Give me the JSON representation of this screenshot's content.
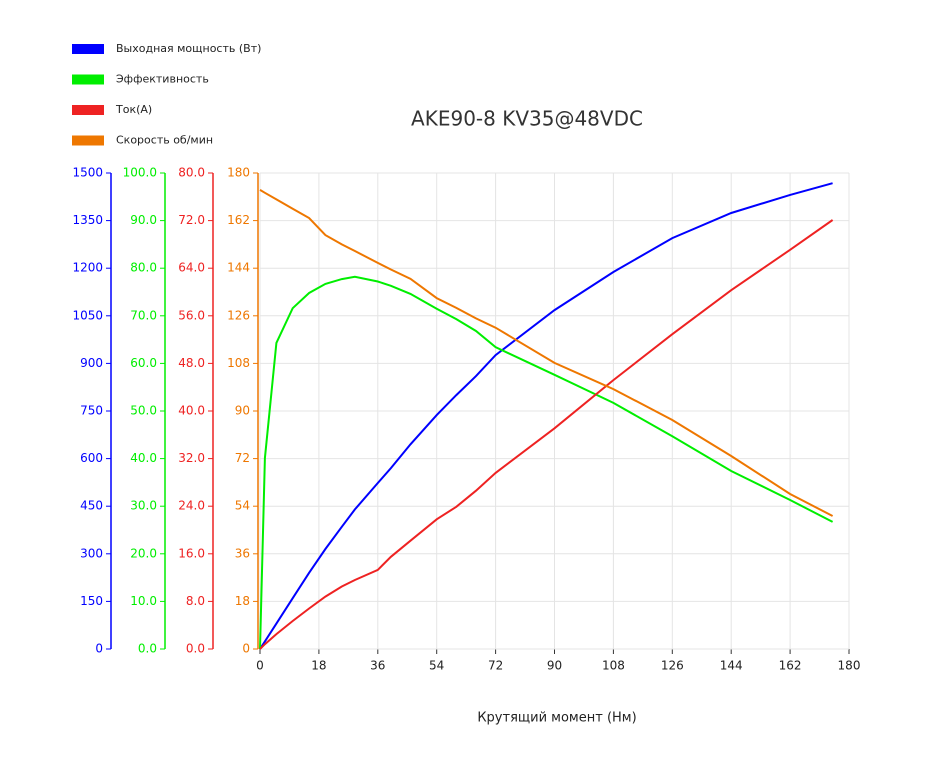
{
  "chart_data": {
    "type": "line",
    "title": "AKE90-8 KV35@48VDC",
    "x_label": "Крутящий момент (Нм)",
    "x": [
      0,
      1.5,
      5,
      10,
      15,
      20,
      25,
      29,
      36,
      40,
      46,
      54,
      60,
      66,
      72,
      90,
      108,
      126,
      144,
      162,
      175
    ],
    "xlim": [
      0,
      180
    ],
    "xticks": [
      0,
      18,
      36,
      54,
      72,
      90,
      108,
      126,
      144,
      162,
      180
    ],
    "grid": true,
    "axes": [
      {
        "color": "#0000ff",
        "ylim": [
          0,
          1500
        ],
        "yticks": [
          0,
          150,
          300,
          450,
          600,
          750,
          900,
          1050,
          1200,
          1350,
          1500
        ]
      },
      {
        "color": "#00ee00",
        "ylim": [
          0,
          100
        ],
        "yticks": [
          {
            "value": 0,
            "label": "0.0"
          },
          {
            "value": 10,
            "label": "10.0"
          },
          {
            "value": 20,
            "label": "20.0"
          },
          {
            "value": 30,
            "label": "30.0"
          },
          {
            "value": 40,
            "label": "40.0"
          },
          {
            "value": 50,
            "label": "50.0"
          },
          {
            "value": 60,
            "label": "60.0"
          },
          {
            "value": 70,
            "label": "70.0"
          },
          {
            "value": 80,
            "label": "80.0"
          },
          {
            "value": 90,
            "label": "90.0"
          },
          {
            "value": 100,
            "label": "100.0"
          }
        ]
      },
      {
        "color": "#ee2222",
        "ylim": [
          0,
          80
        ],
        "yticks": [
          {
            "value": 0,
            "label": "0.0"
          },
          {
            "value": 8,
            "label": "8.0"
          },
          {
            "value": 16,
            "label": "16.0"
          },
          {
            "value": 24,
            "label": "24.0"
          },
          {
            "value": 32,
            "label": "32.0"
          },
          {
            "value": 40,
            "label": "40.0"
          },
          {
            "value": 48,
            "label": "48.0"
          },
          {
            "value": 56,
            "label": "56.0"
          },
          {
            "value": 64,
            "label": "64.0"
          },
          {
            "value": 72,
            "label": "72.0"
          },
          {
            "value": 80,
            "label": "80.0"
          }
        ]
      },
      {
        "color": "#ee7700",
        "ylim": [
          0,
          180
        ],
        "yticks": [
          0,
          18,
          36,
          54,
          72,
          90,
          108,
          126,
          144,
          162,
          180
        ]
      }
    ],
    "series": [
      {
        "name": "Выходная мощность (Вт)",
        "color": "#0000ff",
        "axis": 0,
        "values": [
          0,
          24,
          80,
          160,
          240,
          315,
          385,
          440,
          523,
          570,
          645,
          737,
          800,
          860,
          926,
          1068,
          1188,
          1295,
          1374,
          1431,
          1468
        ]
      },
      {
        "name": "Эффективность",
        "color": "#00ee00",
        "axis": 1,
        "values": [
          0,
          40.1,
          64.3,
          71.6,
          74.8,
          76.7,
          77.7,
          78.2,
          77.2,
          76.3,
          74.6,
          71.5,
          69.3,
          66.8,
          63.4,
          57.6,
          51.7,
          44.7,
          37.4,
          31.3,
          26.7
        ]
      },
      {
        "name": "Ток(A)",
        "color": "#ee2222",
        "axis": 2,
        "values": [
          0,
          0.8,
          2.5,
          4.7,
          6.8,
          8.8,
          10.5,
          11.6,
          13.3,
          15.5,
          18.2,
          21.8,
          23.9,
          26.6,
          29.6,
          37.1,
          45.2,
          52.9,
          60.3,
          67.1,
          72.1
        ]
      },
      {
        "name": "Скорость об/мин",
        "color": "#ee7700",
        "axis": 3,
        "values": [
          173.6,
          172.5,
          170,
          166.5,
          163,
          156.5,
          153,
          150.5,
          146,
          143.5,
          140,
          132.7,
          129,
          125,
          121.5,
          108.2,
          98.3,
          86.6,
          73,
          58.6,
          50.3
        ]
      }
    ]
  }
}
